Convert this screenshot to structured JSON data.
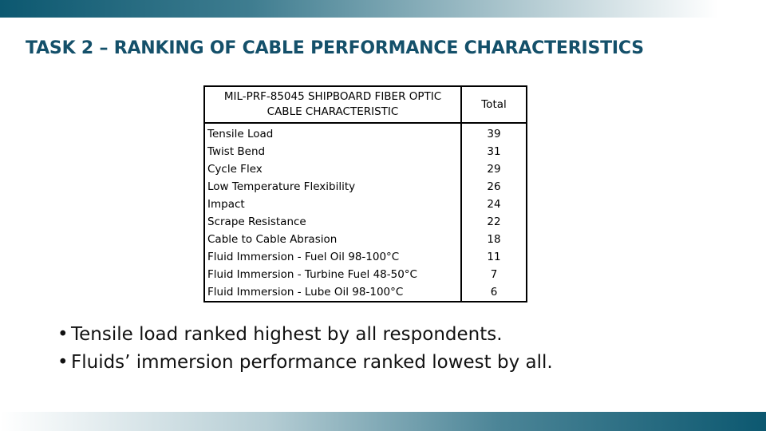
{
  "title": "TASK 2 – RANKING OF CABLE PERFORMANCE CHARACTERISTICS",
  "table": {
    "header_characteristic": "MIL-PRF-85045 SHIPBOARD FIBER OPTIC CABLE CHARACTERISTIC",
    "header_total": "Total",
    "rows": [
      {
        "name": "Tensile Load",
        "total": "39"
      },
      {
        "name": "Twist Bend",
        "total": "31"
      },
      {
        "name": "Cycle Flex",
        "total": "29"
      },
      {
        "name": "Low Temperature Flexibility",
        "total": "26"
      },
      {
        "name": "Impact",
        "total": "24"
      },
      {
        "name": "Scrape Resistance",
        "total": "22"
      },
      {
        "name": "Cable to Cable Abrasion",
        "total": "18"
      },
      {
        "name": "Fluid Immersion - Fuel Oil 98-100°C",
        "total": "11"
      },
      {
        "name": "Fluid Immersion - Turbine Fuel 48-50°C",
        "total": "7"
      },
      {
        "name": "Fluid Immersion - Lube Oil 98-100°C",
        "total": "6"
      }
    ]
  },
  "bullets": [
    "Tensile load ranked highest by all respondents.",
    "Fluids’ immersion performance ranked lowest by all."
  ],
  "colors": {
    "title": "#14506a",
    "bar_dark": "#0c5870"
  }
}
